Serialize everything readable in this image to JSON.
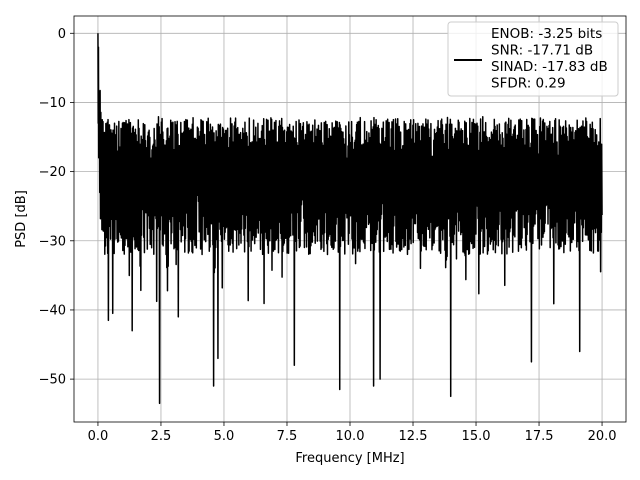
{
  "chart_data": {
    "type": "line",
    "xlabel": "Frequency [MHz]",
    "ylabel": "PSD [dB]",
    "xlim": [
      -0.95,
      20.95
    ],
    "ylim": [
      -56.2,
      2.5
    ],
    "xticks": [
      0.0,
      2.5,
      5.0,
      7.5,
      10.0,
      12.5,
      15.0,
      17.5,
      20.0
    ],
    "xtick_labels": [
      "0.0",
      "2.5",
      "5.0",
      "7.5",
      "10.0",
      "12.5",
      "15.0",
      "17.5",
      "20.0"
    ],
    "yticks": [
      0,
      -10,
      -20,
      -30,
      -40,
      -50
    ],
    "ytick_labels": [
      "0",
      "−10",
      "−20",
      "−30",
      "−40",
      "−50"
    ],
    "grid": true,
    "legend_position": "top-right",
    "series": [
      {
        "color": "#000000",
        "x_range": [
          0.0,
          20.0
        ],
        "approx_upper_envelope_dB": -12.5,
        "approx_median_dB": -21,
        "approx_lower_envelope_dB": -31,
        "peak": {
          "x": 0.0,
          "y": 0.0
        },
        "deep_nulls": [
          {
            "x": 0.42,
            "y": -41.5
          },
          {
            "x": 0.6,
            "y": -40.5
          },
          {
            "x": 1.35,
            "y": -43.0
          },
          {
            "x": 2.45,
            "y": -53.5
          },
          {
            "x": 3.2,
            "y": -41.0
          },
          {
            "x": 4.6,
            "y": -51.0
          },
          {
            "x": 4.75,
            "y": -47.0
          },
          {
            "x": 7.8,
            "y": -48.0
          },
          {
            "x": 9.6,
            "y": -51.5
          },
          {
            "x": 10.95,
            "y": -51.0
          },
          {
            "x": 11.2,
            "y": -50.0
          },
          {
            "x": 14.0,
            "y": -52.5
          },
          {
            "x": 17.2,
            "y": -47.5
          },
          {
            "x": 19.1,
            "y": -46.0
          }
        ]
      }
    ]
  },
  "legend": {
    "lines": [
      "ENOB: -3.25 bits",
      "SNR: -17.71 dB",
      "SINAD: -17.83 dB",
      "SFDR: 0.29"
    ]
  },
  "colors": {
    "line": "#000000",
    "grid": "#b0b0b0",
    "axes": "#000000",
    "background": "#ffffff"
  }
}
